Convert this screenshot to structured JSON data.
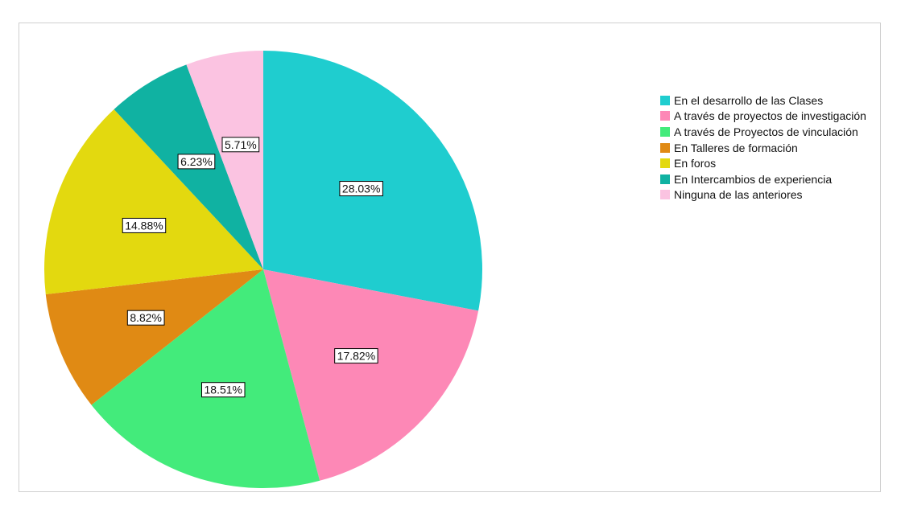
{
  "chart_data": {
    "type": "pie",
    "title": "",
    "slices": [
      {
        "label": "En el desarrollo de las Clases",
        "value": 28.03,
        "value_label": "28.03%",
        "color": "#1fcdcf"
      },
      {
        "label": "A través de proyectos de investigación",
        "value": 17.82,
        "value_label": "17.82%",
        "color": "#fd88b6"
      },
      {
        "label": "A través de Proyectos de vinculación",
        "value": 18.51,
        "value_label": "18.51%",
        "color": "#43eb7b"
      },
      {
        "label": "En Talleres de formación",
        "value": 8.82,
        "value_label": "8.82%",
        "color": "#e08a14"
      },
      {
        "label": "En foros",
        "value": 14.88,
        "value_label": "14.88%",
        "color": "#e3d90f"
      },
      {
        "label": "En Intercambios de experiencia",
        "value": 6.23,
        "value_label": "6.23%",
        "color": "#10b2a2"
      },
      {
        "label": "Ninguna de las anteriores",
        "value": 5.71,
        "value_label": "5.71%",
        "color": "#fbc3e1"
      }
    ],
    "start": "12 o'clock",
    "direction": "clockwise",
    "legend_position": "right"
  }
}
